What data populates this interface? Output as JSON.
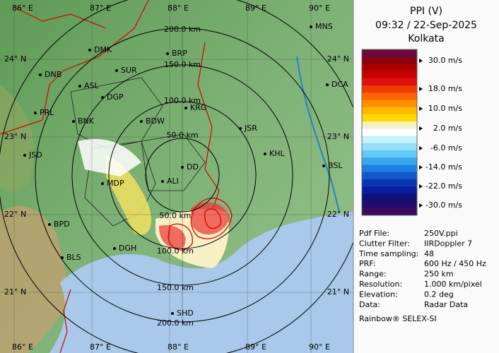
{
  "panel": {
    "title": "PPI (V)",
    "time": "09:32 / 22-Sep-2025",
    "station": "Kolkata",
    "legend": {
      "labels": [
        "30.0 m/s",
        "18.0 m/s",
        "10.0 m/s",
        "2.0 m/s",
        "-6.0 m/s",
        "-14.0 m/s",
        "-22.0 m/s",
        "-30.0 m/s"
      ],
      "colors": [
        "#6a0a3c",
        "#8a0010",
        "#a80000",
        "#c80000",
        "#e01010",
        "#f03a00",
        "#ff6400",
        "#ff9000",
        "#ffb800",
        "#ffd800",
        "#f6f0c4",
        "#ffffff",
        "#c4f0fc",
        "#96def8",
        "#62c8f4",
        "#38a6ee",
        "#1e80e0",
        "#1458cc",
        "#0c36b4",
        "#0a1ea0",
        "#0e1278",
        "#260a6c",
        "#3a0a5c"
      ]
    },
    "info": [
      [
        "Pdf File:",
        "250V.ppi"
      ],
      [
        "Clutter Filter:",
        "IIRDoppler 7"
      ],
      [
        "Time sampling:",
        "48"
      ],
      [
        "PRF:",
        "600 Hz / 450 Hz"
      ],
      [
        "Range:",
        "250 km"
      ],
      [
        "Resolution:",
        "1.000 km/pixel"
      ],
      [
        "Elevation:",
        "0.2 deg"
      ],
      [
        "Data:",
        "Radar Data"
      ]
    ],
    "footer": "Rainbow® SELEX-SI"
  },
  "map": {
    "lon_top": [
      "86° E",
      "87° E",
      "88° E",
      "89° E",
      "90° E"
    ],
    "lon_bottom": [
      "86° E",
      "87° E",
      "88° E",
      "89° E",
      "90° E"
    ],
    "lat_left": [
      "24° N",
      "23° N",
      "22° N",
      "21° N"
    ],
    "lat_right": [
      "24° N",
      "23° N",
      "22° N",
      "21° N"
    ],
    "range_top": [
      "200.0 km",
      "150.0 km",
      "100.0 km",
      "50.0 km"
    ],
    "range_bottom": [
      "50.0 km",
      "100.0 km",
      "150.0 km",
      "200.0 km"
    ],
    "cities": [
      "MNS",
      "DMK",
      "BRP",
      "DNB",
      "SUR",
      "ASL",
      "DGP",
      "DCA",
      "KRG",
      "PRL",
      "BNK",
      "BDW",
      "JSR",
      "JSD",
      "KHL",
      "DD",
      "BSL",
      "MDP",
      "ALI",
      "BPD",
      "DGH",
      "BLS",
      "SHD"
    ]
  }
}
